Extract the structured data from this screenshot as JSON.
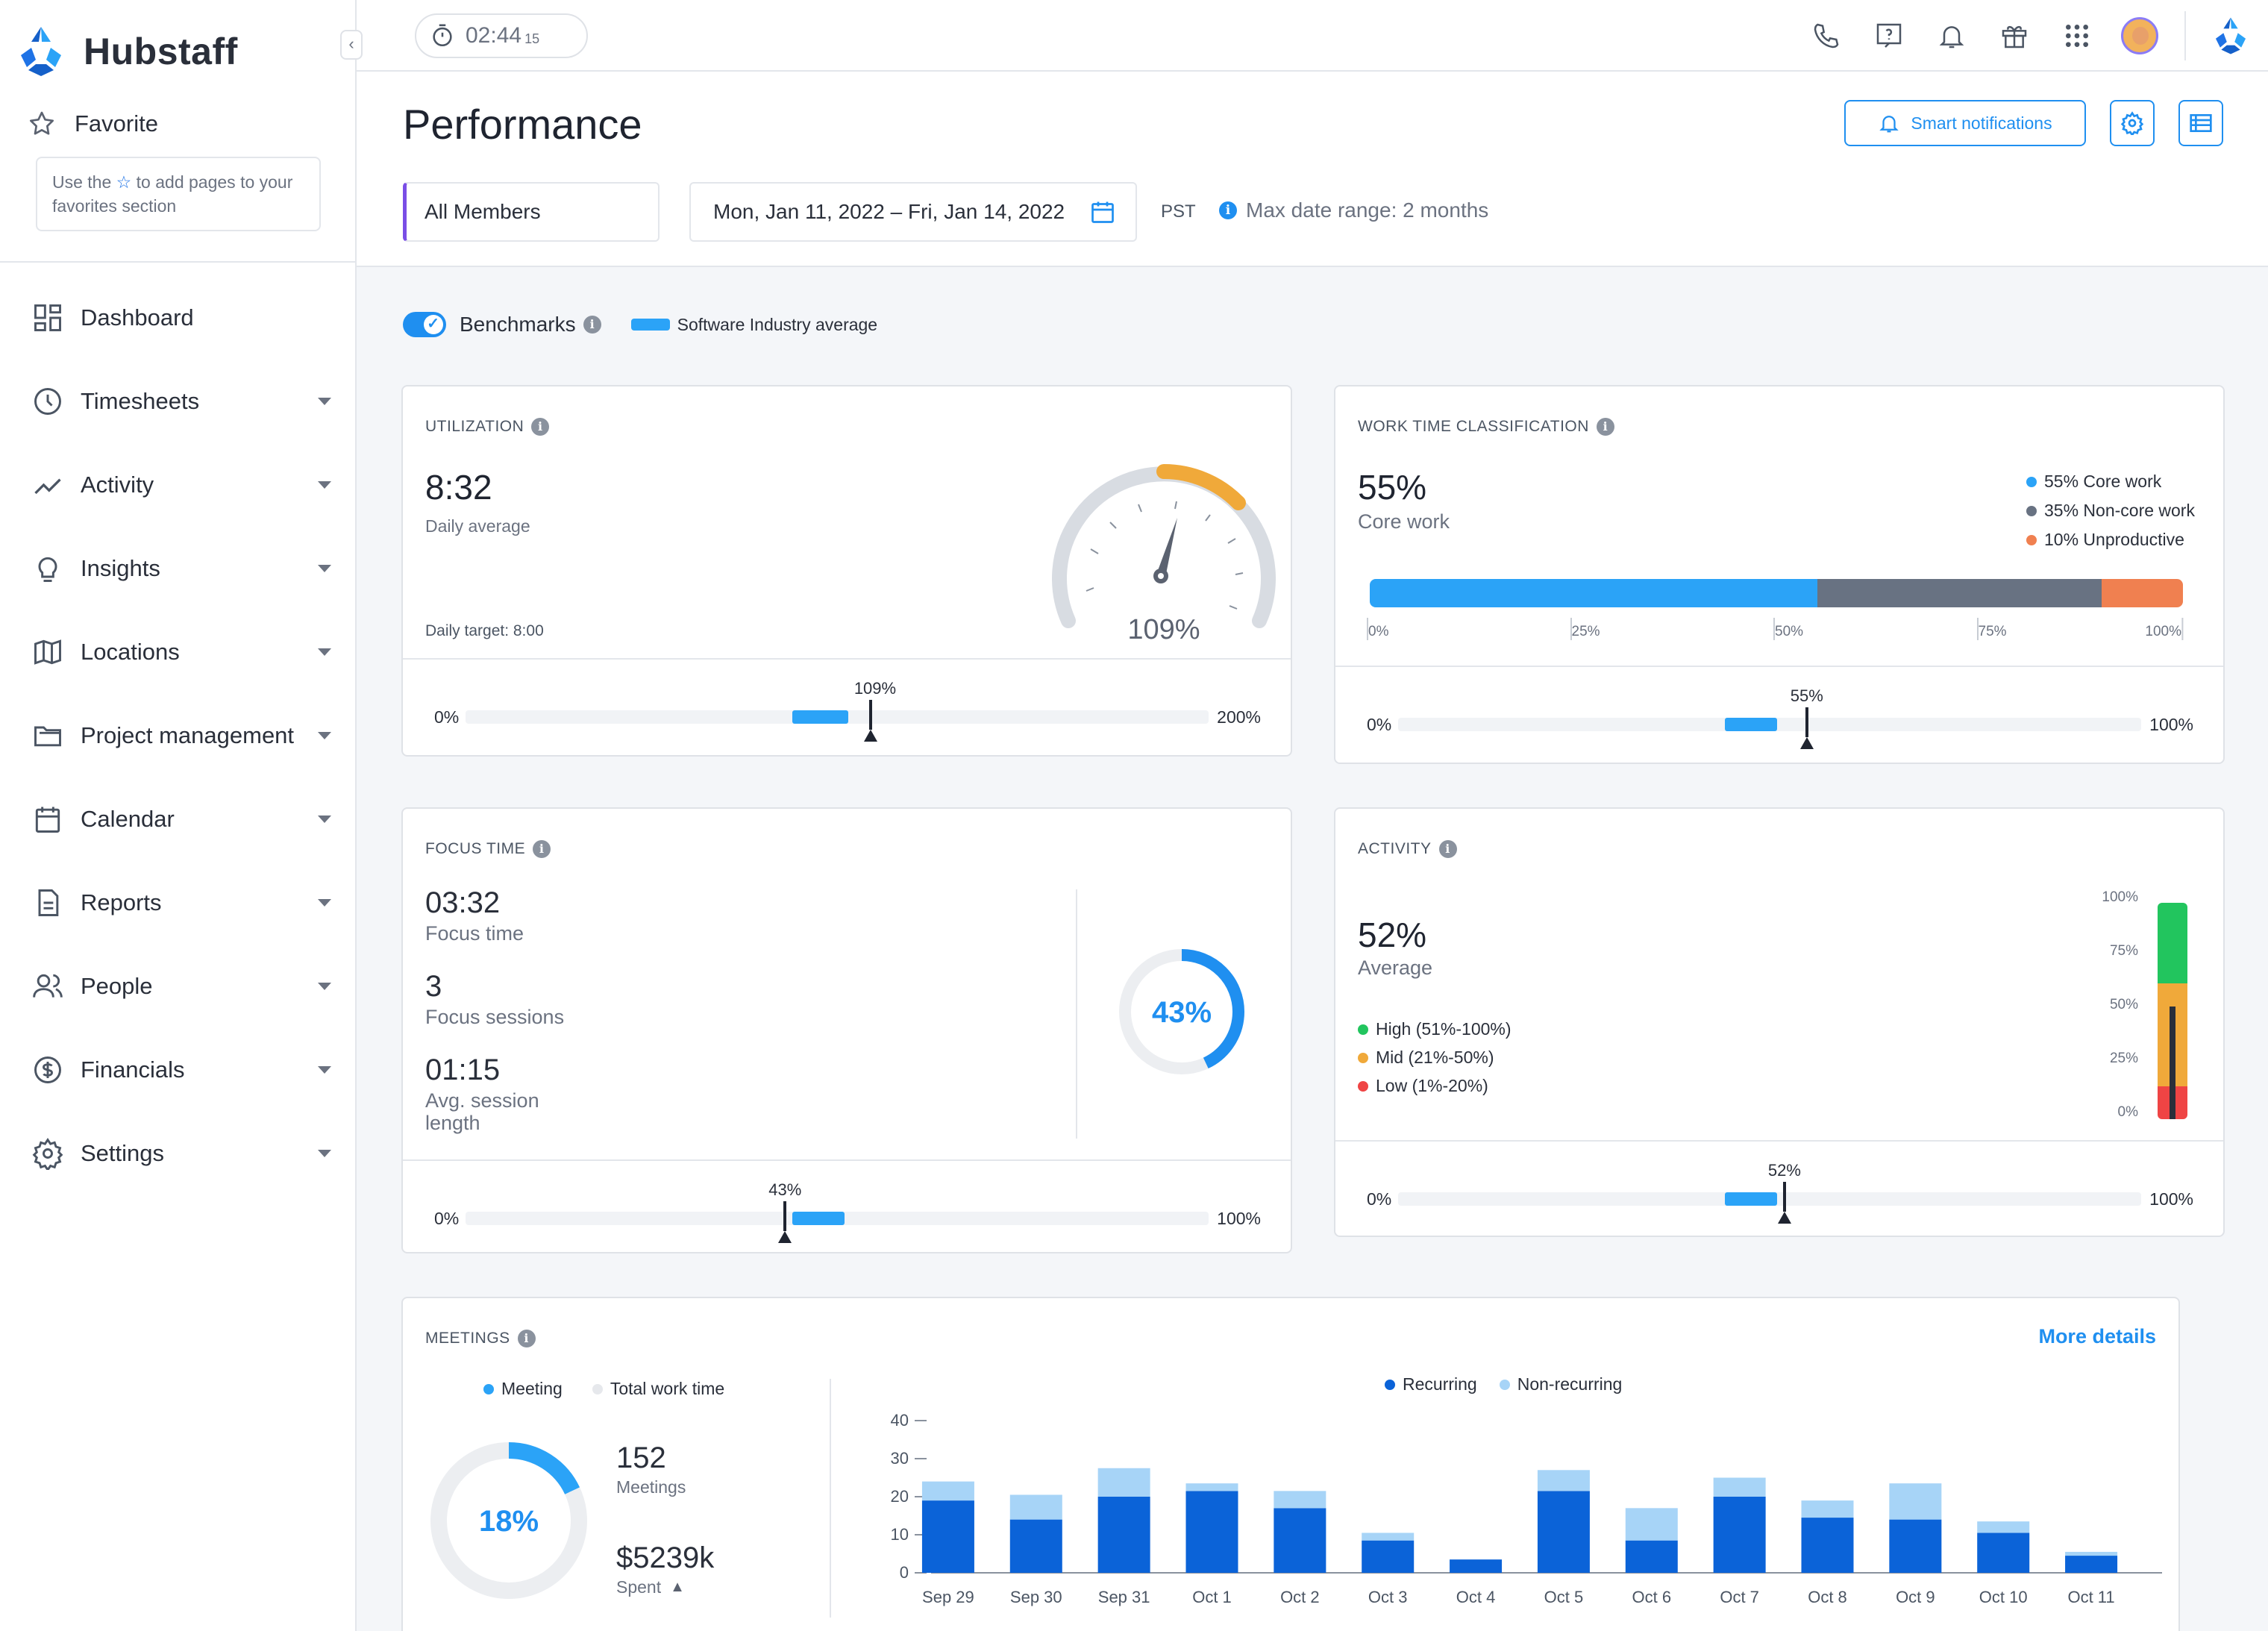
{
  "app": {
    "name": "Hubstaff"
  },
  "sidebar": {
    "favorite_label": "Favorite",
    "fav_hint_pre": "Use the",
    "fav_hint_post": "to add pages to your favorites section",
    "items": [
      {
        "label": "Dashboard",
        "icon": "dashboard-icon"
      },
      {
        "label": "Timesheets",
        "icon": "clock-icon"
      },
      {
        "label": "Activity",
        "icon": "activity-icon"
      },
      {
        "label": "Insights",
        "icon": "lightbulb-icon"
      },
      {
        "label": "Locations",
        "icon": "map-icon"
      },
      {
        "label": "Project management",
        "icon": "folder-icon"
      },
      {
        "label": "Calendar",
        "icon": "calendar-icon"
      },
      {
        "label": "Reports",
        "icon": "report-icon"
      },
      {
        "label": "People",
        "icon": "people-icon"
      },
      {
        "label": "Financials",
        "icon": "dollar-icon"
      },
      {
        "label": "Settings",
        "icon": "gear-icon"
      }
    ]
  },
  "topbar": {
    "timer_main": "02:44",
    "timer_seconds": "15"
  },
  "header": {
    "title": "Performance",
    "smart_notifications": "Smart notifications",
    "members": "All Members",
    "date_range": "Mon, Jan 11, 2022 – Fri, Jan 14, 2022",
    "timezone": "PST",
    "max_range": "Max date range: 2 months"
  },
  "benchmarks": {
    "label": "Benchmarks",
    "enabled": true,
    "legend": "Software Industry average"
  },
  "colors": {
    "accent": "#1f8ff0",
    "benchmark": "#2ba3f7",
    "core": "#2ba3f7",
    "noncore": "#687282",
    "unproductive": "#f08050",
    "gauge_over": "#f0a93a",
    "high": "#22c55e",
    "mid": "#f0a93a",
    "low": "#ef4444",
    "recurring": "#0b63d8",
    "nonrecurring": "#a7d4f7"
  },
  "utilization": {
    "title": "UTILIZATION",
    "value": "8:32",
    "value_label": "Daily average",
    "target": "Daily target: 8:00",
    "gauge_pct": "109%",
    "gauge_fraction": 1.09,
    "bench": {
      "min": "0%",
      "max": "200%",
      "value_label": "109%",
      "value": 109,
      "range_max": 200,
      "benchmark_from": 88,
      "benchmark_to": 103
    }
  },
  "work_time": {
    "title": "WORK TIME CLASSIFICATION",
    "value": "55%",
    "value_label": "Core work",
    "legend": [
      "55% Core work",
      "35% Non-core work",
      "10% Unproductive"
    ],
    "segments": [
      55,
      35,
      10
    ],
    "axis_ticks": [
      "0%",
      "25%",
      "50%",
      "75%",
      "100%"
    ],
    "bench": {
      "min": "0%",
      "max": "100%",
      "value_label": "55%",
      "value": 55,
      "range_max": 100,
      "benchmark_from": 44,
      "benchmark_to": 51
    }
  },
  "focus": {
    "title": "FOCUS TIME",
    "time": "03:32",
    "time_label": "Focus time",
    "sessions": "3",
    "sessions_label": "Focus sessions",
    "avg": "01:15",
    "avg_label_1": "Avg. session",
    "avg_label_2": "length",
    "donut_label": "43%",
    "donut_fraction": 0.43,
    "bench": {
      "min": "0%",
      "max": "100%",
      "value_label": "43%",
      "value": 43,
      "range_max": 100,
      "benchmark_from": 44,
      "benchmark_to": 51
    }
  },
  "activity": {
    "title": "ACTIVITY",
    "value": "52%",
    "value_label": "Average",
    "legend": [
      "High (51%-100%)",
      "Mid (21%-50%)",
      "Low (1%-20%)"
    ],
    "scale": [
      "100%",
      "75%",
      "50%",
      "25%",
      "0%"
    ],
    "level": 0.52,
    "bench": {
      "min": "0%",
      "max": "100%",
      "value_label": "52%",
      "value": 52,
      "range_max": 100,
      "benchmark_from": 44,
      "benchmark_to": 51
    }
  },
  "meetings": {
    "title": "MEETINGS",
    "more": "More details",
    "legend_meeting": "Meeting",
    "legend_total": "Total work time",
    "donut_label": "18%",
    "donut_fraction": 0.18,
    "count": "152",
    "count_label": "Meetings",
    "spent": "$5239k",
    "spent_label": "Spent"
  },
  "chart_data": {
    "type": "bar",
    "stacked": true,
    "categories": [
      "Sep 29",
      "Sep 30",
      "Sep 31",
      "Oct 1",
      "Oct 2",
      "Oct 3",
      "Oct 4",
      "Oct 5",
      "Oct 6",
      "Oct 7",
      "Oct 8",
      "Oct 9",
      "Oct 10",
      "Oct 11"
    ],
    "series": [
      {
        "name": "Recurring",
        "values": [
          19,
          14,
          20,
          21.5,
          17,
          8.5,
          3.5,
          21.5,
          8.5,
          20,
          14.5,
          14,
          10.5,
          4.5
        ]
      },
      {
        "name": "Non-recurring",
        "values": [
          5,
          6.5,
          7.5,
          2,
          4.5,
          2,
          0,
          5.5,
          8.5,
          5,
          4.5,
          9.5,
          3,
          1
        ]
      }
    ],
    "yticks": [
      "0",
      "10",
      "20",
      "30",
      "40"
    ],
    "ylim": [
      0,
      40
    ]
  }
}
